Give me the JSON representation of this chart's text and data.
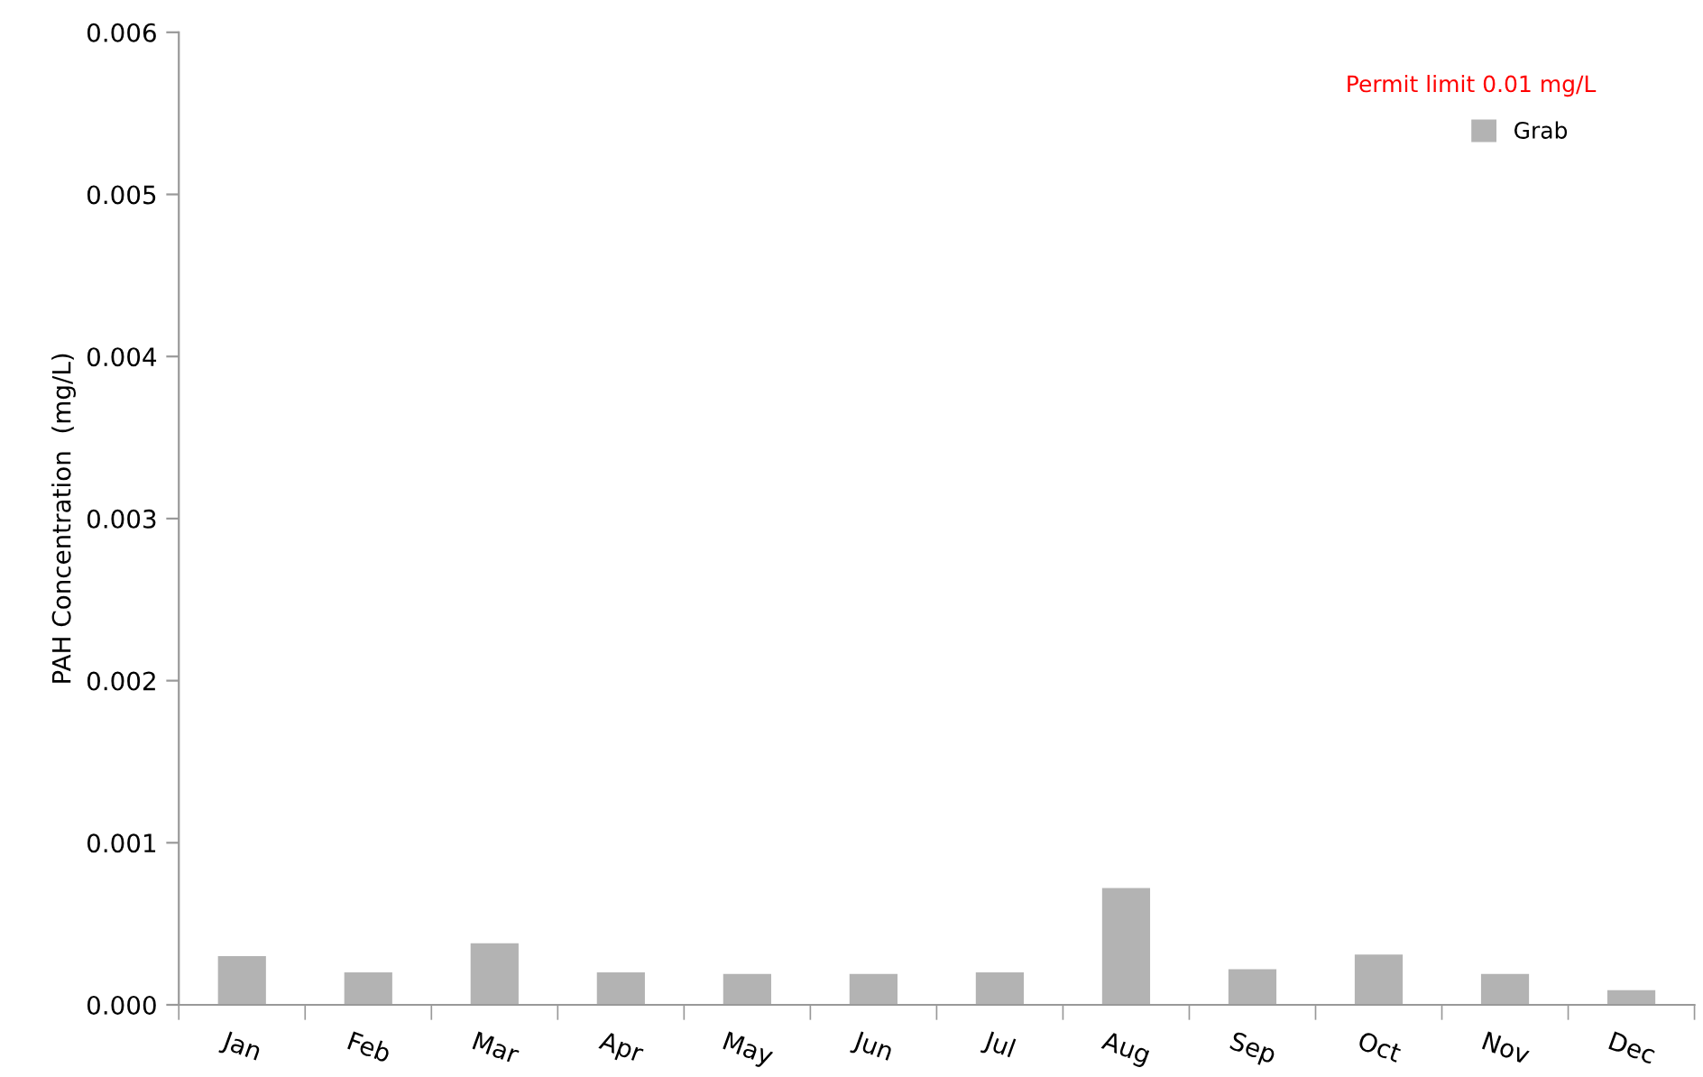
{
  "chart_data": {
    "type": "bar",
    "ylabel": "PAH Concentration  (mg/L)",
    "categories": [
      "Jan",
      "Feb",
      "Mar",
      "Apr",
      "May",
      "Jun",
      "Jul",
      "Aug",
      "Sep",
      "Oct",
      "Nov",
      "Dec"
    ],
    "series": [
      {
        "name": "Grab",
        "color": "#b3b3b3",
        "values": [
          0.0003,
          0.0002,
          0.00038,
          0.0002,
          0.00019,
          0.00019,
          0.0002,
          0.00072,
          0.00022,
          0.00031,
          0.00019,
          9e-05
        ]
      }
    ],
    "ylim": [
      0,
      0.006
    ],
    "yticks": [
      {
        "value": 0,
        "label": "0.000"
      },
      0.001,
      0.002,
      0.003,
      0.004,
      0.005,
      0.006
    ],
    "annotations": [
      "Permit limit 0.01 mg/L"
    ],
    "legend": "top right",
    "grid": false
  }
}
